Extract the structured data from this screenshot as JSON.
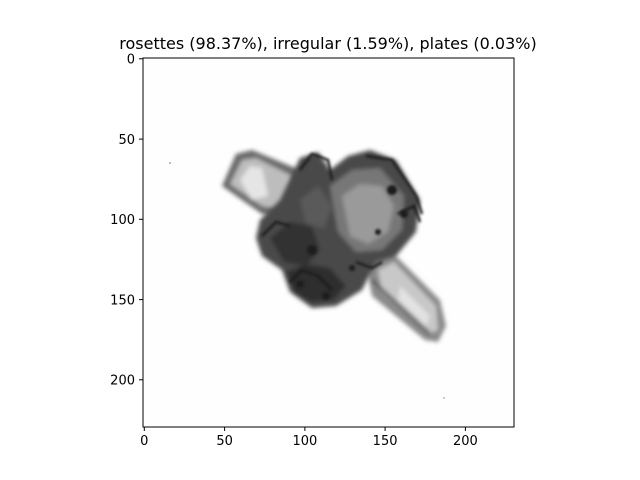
{
  "figure": {
    "title": "rosettes (98.37%), irregular (1.59%), plates (0.03%)"
  },
  "image_panel": {
    "subject": "grayscale microscope image of an ice crystal (rosette aggregate) on a light background",
    "x_range": [
      0,
      230
    ],
    "y_range": [
      230,
      0
    ],
    "x_ticks": [
      "0",
      "50",
      "100",
      "150",
      "200"
    ],
    "y_ticks": [
      "0",
      "50",
      "100",
      "150",
      "200"
    ]
  }
}
